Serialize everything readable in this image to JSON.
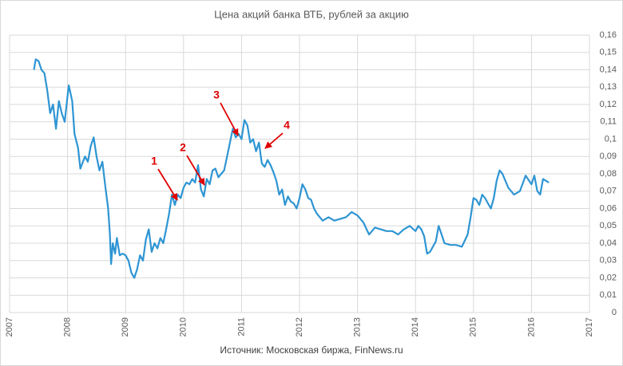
{
  "chart_data": {
    "type": "line",
    "title": "Цена акций банка ВТБ, рублей за акцию",
    "source": "Источник: Московская биржа, FinNews.ru",
    "xlim": [
      2007,
      2017
    ],
    "xticks": [
      2007,
      2008,
      2009,
      2010,
      2011,
      2012,
      2013,
      2014,
      2015,
      2016,
      2017
    ],
    "ylim": [
      0,
      0.16
    ],
    "yticks": [
      0,
      {
        "value": 0.01,
        "label": "0,01"
      },
      {
        "value": 0.02,
        "label": "0,02"
      },
      {
        "value": 0.03,
        "label": "0,03"
      },
      {
        "value": 0.04,
        "label": "0,04"
      },
      {
        "value": 0.05,
        "label": "0,05"
      },
      {
        "value": 0.06,
        "label": "0,06"
      },
      {
        "value": 0.07,
        "label": "0,07"
      },
      {
        "value": 0.08,
        "label": "0,08"
      },
      {
        "value": 0.09,
        "label": "0,09"
      },
      {
        "value": 0.1,
        "label": "0,1"
      },
      {
        "value": 0.11,
        "label": "0,11"
      },
      {
        "value": 0.12,
        "label": "0,12"
      },
      {
        "value": 0.13,
        "label": "0,13"
      },
      {
        "value": 0.14,
        "label": "0,14"
      },
      {
        "value": 0.15,
        "label": "0,15"
      },
      {
        "value": 0.16,
        "label": "0,16"
      }
    ],
    "y_axis_side": "right",
    "grid": true,
    "annotations": [
      {
        "text": "1"
      },
      {
        "text": "2"
      },
      {
        "text": "3"
      },
      {
        "text": "4"
      }
    ],
    "annotation_color": "#e00000",
    "series": [
      {
        "color": "#2e95d3",
        "x": [
          2007.42,
          2007.45,
          2007.5,
          2007.55,
          2007.6,
          2007.65,
          2007.7,
          2007.75,
          2007.8,
          2007.85,
          2007.9,
          2007.95,
          2008.0,
          2008.02,
          2008.08,
          2008.12,
          2008.18,
          2008.22,
          2008.3,
          2008.35,
          2008.4,
          2008.45,
          2008.5,
          2008.55,
          2008.6,
          2008.65,
          2008.7,
          2008.73,
          2008.75,
          2008.78,
          2008.82,
          2008.85,
          2008.9,
          2008.95,
          2009.0,
          2009.05,
          2009.1,
          2009.15,
          2009.2,
          2009.25,
          2009.3,
          2009.35,
          2009.4,
          2009.45,
          2009.5,
          2009.55,
          2009.6,
          2009.65,
          2009.7,
          2009.75,
          2009.8,
          2009.85,
          2009.9,
          2009.95,
          2010.0,
          2010.05,
          2010.1,
          2010.15,
          2010.2,
          2010.25,
          2010.3,
          2010.35,
          2010.4,
          2010.45,
          2010.5,
          2010.55,
          2010.6,
          2010.65,
          2010.7,
          2010.75,
          2010.8,
          2010.85,
          2010.9,
          2010.95,
          2011.0,
          2011.05,
          2011.1,
          2011.15,
          2011.2,
          2011.25,
          2011.3,
          2011.35,
          2011.4,
          2011.45,
          2011.5,
          2011.55,
          2011.6,
          2011.65,
          2011.7,
          2011.75,
          2011.8,
          2011.85,
          2011.9,
          2011.95,
          2012.0,
          2012.05,
          2012.1,
          2012.15,
          2012.2,
          2012.25,
          2012.3,
          2012.35,
          2012.4,
          2012.5,
          2012.6,
          2012.7,
          2012.8,
          2012.9,
          2013.0,
          2013.1,
          2013.2,
          2013.3,
          2013.4,
          2013.5,
          2013.6,
          2013.7,
          2013.8,
          2013.9,
          2014.0,
          2014.05,
          2014.1,
          2014.15,
          2014.2,
          2014.25,
          2014.3,
          2014.35,
          2014.4,
          2014.45,
          2014.5,
          2014.6,
          2014.7,
          2014.8,
          2014.9,
          2014.95,
          2015.0,
          2015.05,
          2015.1,
          2015.15,
          2015.2,
          2015.25,
          2015.3,
          2015.35,
          2015.4,
          2015.45,
          2015.5,
          2015.55,
          2015.6,
          2015.7,
          2015.8,
          2015.9,
          2016.0,
          2016.05,
          2016.1,
          2016.15,
          2016.2,
          2016.3
        ],
        "values": [
          0.14,
          0.146,
          0.145,
          0.14,
          0.138,
          0.128,
          0.115,
          0.12,
          0.106,
          0.122,
          0.115,
          0.11,
          0.125,
          0.131,
          0.122,
          0.103,
          0.095,
          0.083,
          0.09,
          0.087,
          0.096,
          0.101,
          0.09,
          0.082,
          0.087,
          0.073,
          0.06,
          0.045,
          0.028,
          0.04,
          0.034,
          0.043,
          0.033,
          0.034,
          0.033,
          0.03,
          0.023,
          0.02,
          0.025,
          0.033,
          0.03,
          0.042,
          0.048,
          0.035,
          0.04,
          0.037,
          0.043,
          0.04,
          0.048,
          0.057,
          0.068,
          0.062,
          0.068,
          0.066,
          0.072,
          0.075,
          0.074,
          0.077,
          0.075,
          0.085,
          0.071,
          0.067,
          0.077,
          0.074,
          0.082,
          0.083,
          0.078,
          0.08,
          0.082,
          0.09,
          0.098,
          0.106,
          0.101,
          0.103,
          0.1,
          0.111,
          0.108,
          0.098,
          0.1,
          0.093,
          0.098,
          0.086,
          0.084,
          0.088,
          0.085,
          0.081,
          0.076,
          0.068,
          0.071,
          0.062,
          0.067,
          0.064,
          0.063,
          0.06,
          0.066,
          0.074,
          0.071,
          0.066,
          0.065,
          0.06,
          0.057,
          0.055,
          0.053,
          0.055,
          0.053,
          0.054,
          0.055,
          0.058,
          0.056,
          0.052,
          0.045,
          0.049,
          0.048,
          0.047,
          0.047,
          0.045,
          0.048,
          0.05,
          0.047,
          0.05,
          0.048,
          0.044,
          0.034,
          0.035,
          0.038,
          0.041,
          0.05,
          0.045,
          0.04,
          0.039,
          0.039,
          0.038,
          0.045,
          0.055,
          0.066,
          0.065,
          0.062,
          0.068,
          0.066,
          0.063,
          0.06,
          0.066,
          0.076,
          0.082,
          0.08,
          0.076,
          0.072,
          0.068,
          0.07,
          0.079,
          0.074,
          0.079,
          0.07,
          0.068,
          0.077,
          0.075
        ]
      }
    ]
  }
}
